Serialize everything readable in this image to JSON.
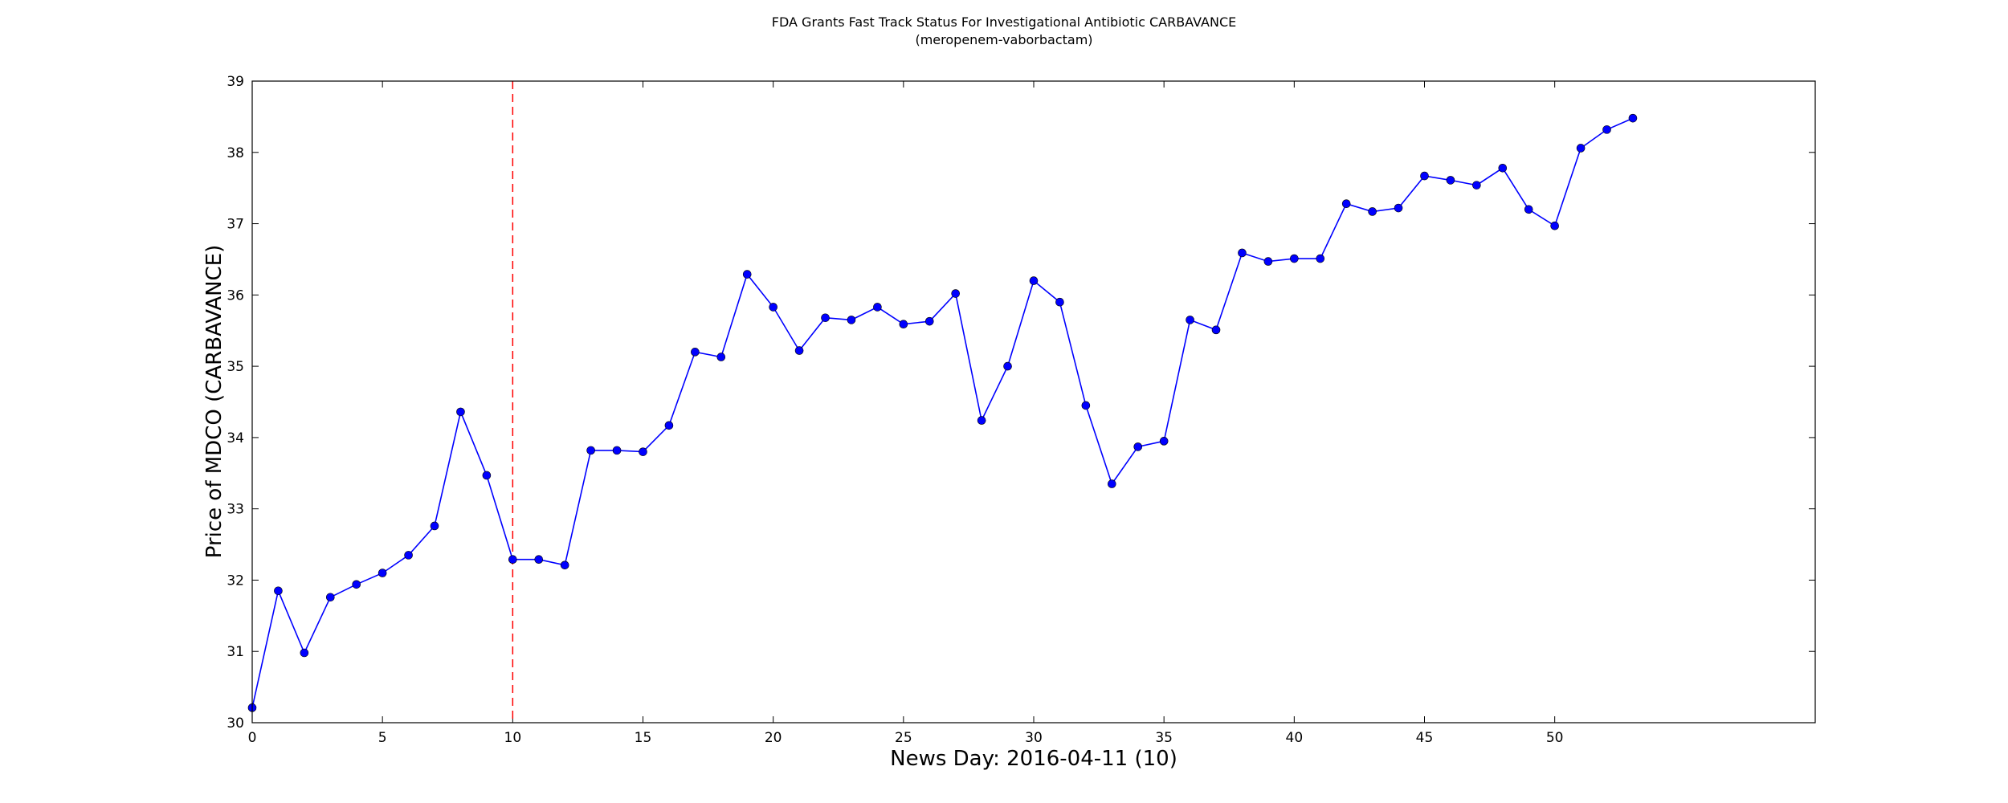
{
  "chart_data": {
    "type": "line",
    "title": "FDA Grants Fast Track Status For Investigational Antibiotic CARBAVANCE",
    "subtitle": "(meropenem-vaborbactam)",
    "xlabel": "News Day: 2016-04-11 (10)",
    "ylabel": "Price of MDCO (CARBAVANCE)",
    "xlim": [
      0,
      60
    ],
    "ylim": [
      30,
      39
    ],
    "xticks": [
      0,
      5,
      10,
      15,
      20,
      25,
      30,
      35,
      40,
      45,
      50
    ],
    "yticks": [
      30,
      31,
      32,
      33,
      34,
      35,
      36,
      37,
      38,
      39
    ],
    "grid": false,
    "event_line": {
      "x": 10,
      "color": "#ff0000",
      "style": "dashed"
    },
    "series": [
      {
        "color": "#0000ff",
        "marker": "circle",
        "x": [
          0,
          1,
          2,
          3,
          4,
          5,
          6,
          7,
          8,
          9,
          10,
          11,
          12,
          13,
          14,
          15,
          16,
          17,
          18,
          19,
          20,
          21,
          22,
          23,
          24,
          25,
          26,
          27,
          28,
          29,
          30,
          31,
          32,
          33,
          34,
          35,
          36,
          37,
          38,
          39,
          40,
          41,
          42,
          43,
          44,
          45,
          46,
          47,
          48,
          49,
          50,
          51,
          52,
          53
        ],
        "values": [
          30.21,
          31.85,
          30.98,
          31.76,
          31.94,
          32.1,
          32.35,
          32.76,
          34.36,
          33.47,
          32.29,
          32.29,
          32.21,
          33.82,
          33.82,
          33.8,
          34.17,
          35.2,
          35.13,
          36.29,
          35.83,
          35.22,
          35.68,
          35.65,
          35.83,
          35.59,
          35.63,
          36.02,
          34.24,
          35.0,
          36.2,
          35.9,
          34.45,
          33.35,
          33.87,
          33.95,
          35.65,
          35.51,
          36.59,
          36.47,
          36.51,
          36.51,
          37.28,
          37.17,
          37.22,
          37.67,
          37.61,
          37.54,
          37.78,
          37.2,
          36.97,
          38.06,
          38.32,
          38.48
        ]
      }
    ]
  }
}
